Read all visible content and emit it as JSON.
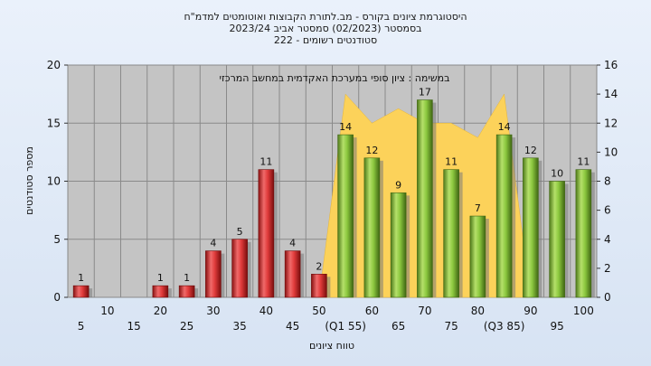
{
  "titles": {
    "line1": "היסטוגרמת ציונים בקורס - מב.לתורת הקבוצות ואוטומטים למדמ\"ח",
    "line2": "בסמסטר (02/2023) סמסטר אביב 2023/24",
    "line3": "סטודנטים רשומים - 222"
  },
  "colors": {
    "failing_bar": "#e03b3b",
    "passing_bar": "#8cc83f",
    "area": "#fcd25a",
    "plot_bg": "#c4c4c4"
  },
  "chart_data": {
    "type": "bar",
    "title": "במשימה : ציון סופי במערכת האקדמית במחשב המרכזי",
    "xlabel": "טווח ציונים",
    "ylabel": "מספר סטודנטים",
    "ylim": [
      0,
      20
    ],
    "yticks": [
      "0",
      "5",
      "10",
      "15",
      "20"
    ],
    "y2lim": [
      0,
      16
    ],
    "y2ticks": [
      "0",
      "2",
      "4",
      "6",
      "8",
      "10",
      "12",
      "14",
      "16"
    ],
    "categories": [
      "5",
      "10",
      "15",
      "20",
      "25",
      "30",
      "35",
      "40",
      "45",
      "50",
      "55",
      "60",
      "65",
      "70",
      "75",
      "80",
      "85",
      "90",
      "95",
      "100"
    ],
    "category_labels": [
      "5",
      "10",
      "15",
      "20",
      "25",
      "30",
      "35",
      "40",
      "45",
      "50",
      "(Q1 55)",
      "60",
      "65",
      "70",
      "75",
      "80",
      "(Q3 85)",
      "90",
      "95",
      "100"
    ],
    "series": [
      {
        "type": "bar",
        "values": [
          1,
          0,
          0,
          1,
          1,
          4,
          5,
          11,
          4,
          2,
          14,
          12,
          9,
          17,
          11,
          7,
          14,
          12,
          10,
          11
        ],
        "value_labels": [
          "1",
          "",
          "",
          "1",
          "1",
          "4",
          "5",
          "11",
          "4",
          "2",
          "14",
          "12",
          "9",
          "17",
          "11",
          "7",
          "14",
          "12",
          "10",
          "11"
        ]
      },
      {
        "type": "area",
        "axis": "right",
        "x": [
          "50",
          "55",
          "60",
          "65",
          "70",
          "75",
          "80",
          "85",
          "90"
        ],
        "values": [
          0,
          14,
          12,
          13,
          12,
          12,
          11,
          14,
          0
        ]
      }
    ],
    "pass_threshold": 55,
    "grid": true,
    "legend": "none"
  }
}
